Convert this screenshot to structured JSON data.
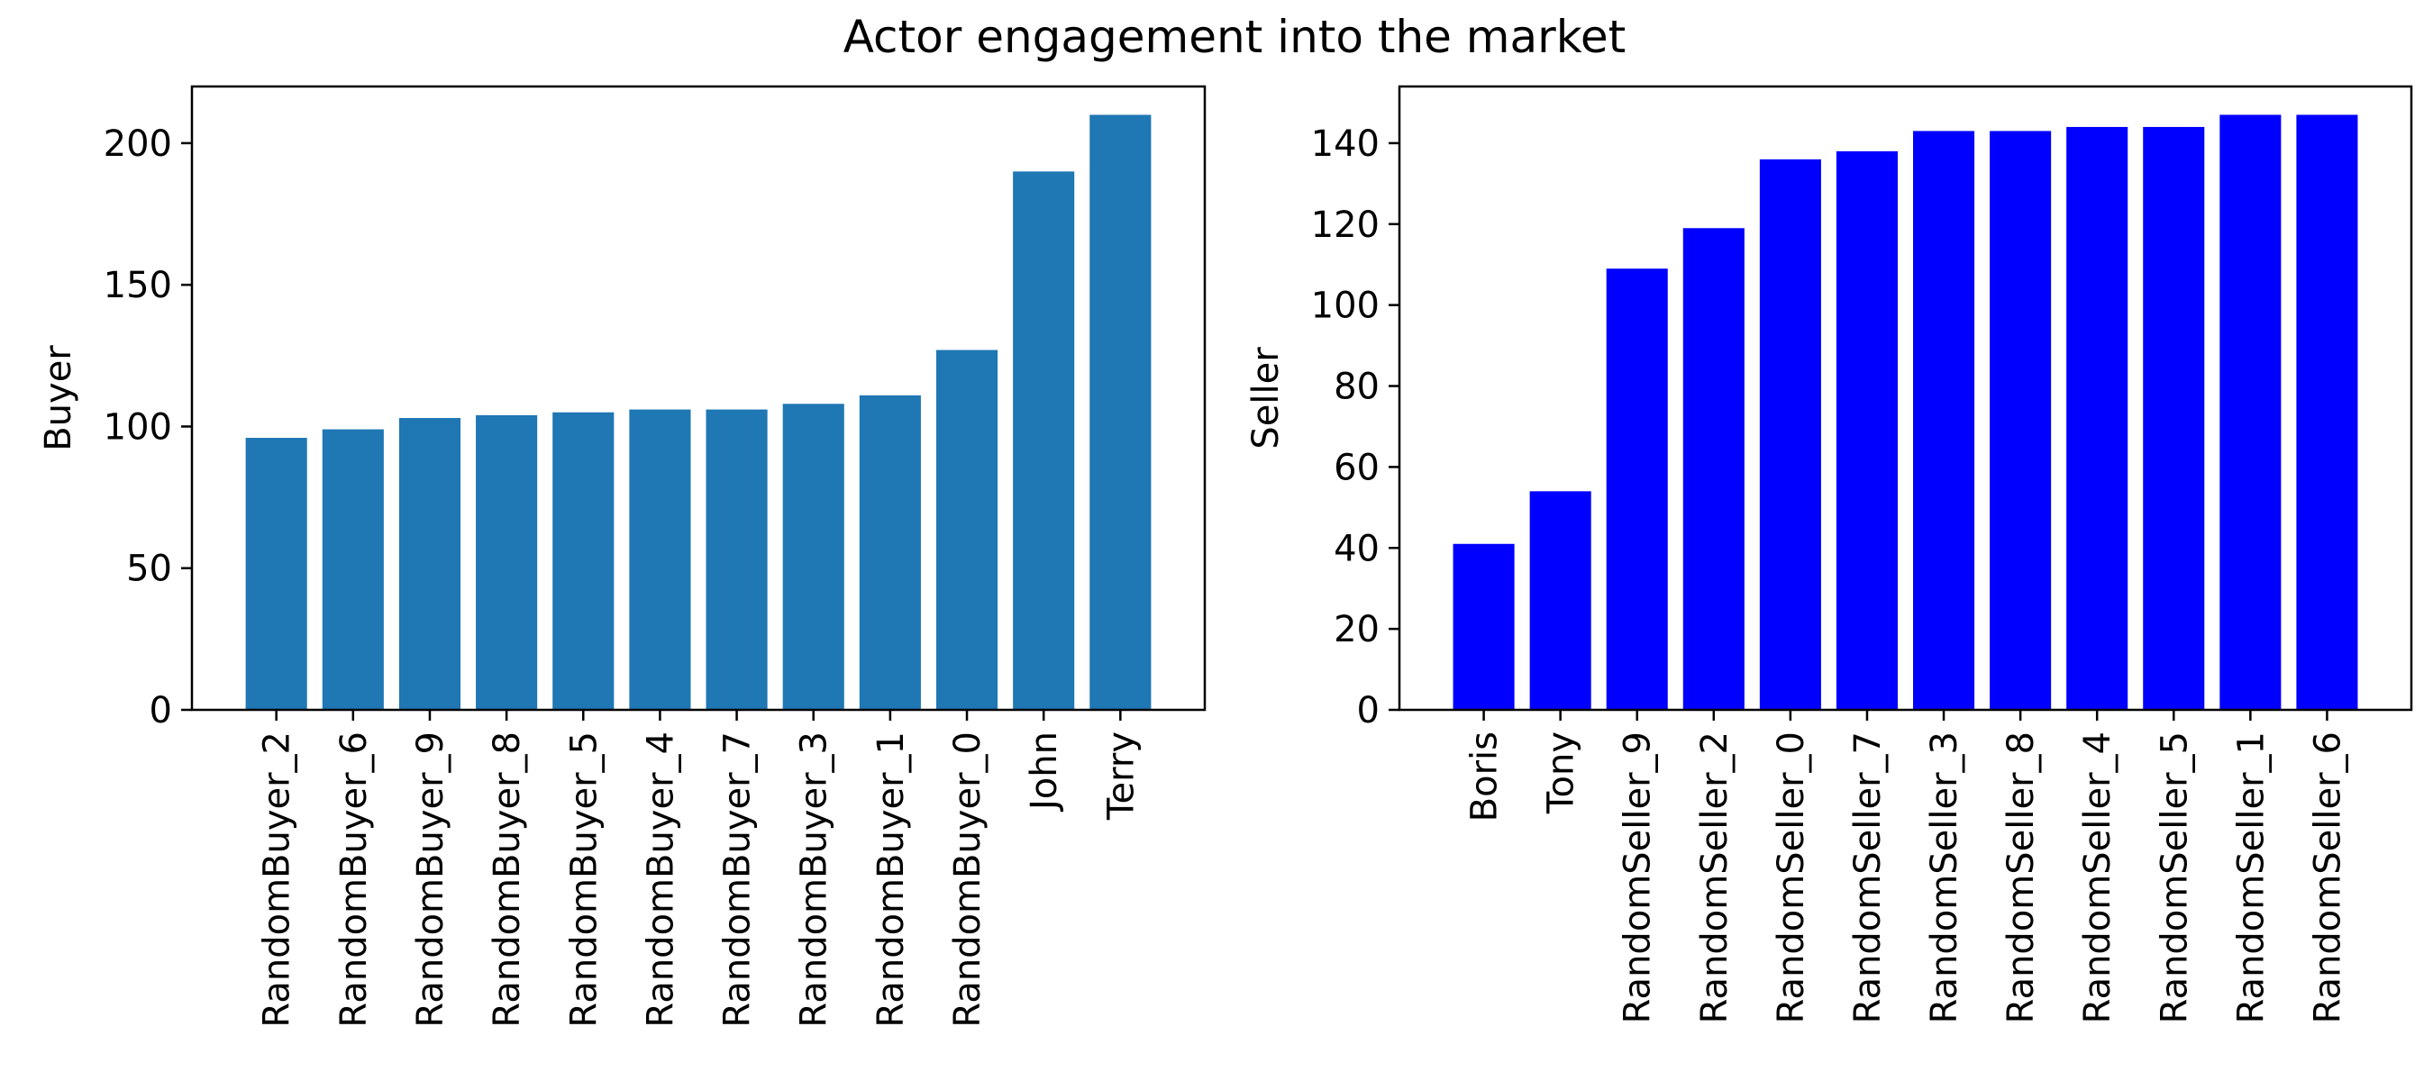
{
  "title": "Actor engagement into the market",
  "chart_data": [
    {
      "type": "bar",
      "ylabel": "Buyer",
      "xlabel": "",
      "ylim": [
        0,
        220
      ],
      "yticks": [
        0,
        50,
        100,
        150,
        200
      ],
      "bar_color": "#1f77b4",
      "grid": false,
      "categories": [
        "RandomBuyer_2",
        "RandomBuyer_6",
        "RandomBuyer_9",
        "RandomBuyer_8",
        "RandomBuyer_5",
        "RandomBuyer_4",
        "RandomBuyer_7",
        "RandomBuyer_3",
        "RandomBuyer_1",
        "RandomBuyer_0",
        "John",
        "Terry"
      ],
      "values": [
        96,
        99,
        103,
        104,
        105,
        106,
        106,
        108,
        111,
        127,
        190,
        210
      ]
    },
    {
      "type": "bar",
      "ylabel": "Seller",
      "xlabel": "",
      "ylim": [
        0,
        154
      ],
      "yticks": [
        0,
        20,
        40,
        60,
        80,
        100,
        120,
        140
      ],
      "bar_color": "#0000ff",
      "grid": false,
      "categories": [
        "Boris",
        "Tony",
        "RandomSeller_9",
        "RandomSeller_2",
        "RandomSeller_0",
        "RandomSeller_7",
        "RandomSeller_3",
        "RandomSeller_8",
        "RandomSeller_4",
        "RandomSeller_5",
        "RandomSeller_1",
        "RandomSeller_6"
      ],
      "values": [
        41,
        54,
        109,
        119,
        136,
        138,
        143,
        143,
        144,
        144,
        147,
        147
      ]
    }
  ]
}
